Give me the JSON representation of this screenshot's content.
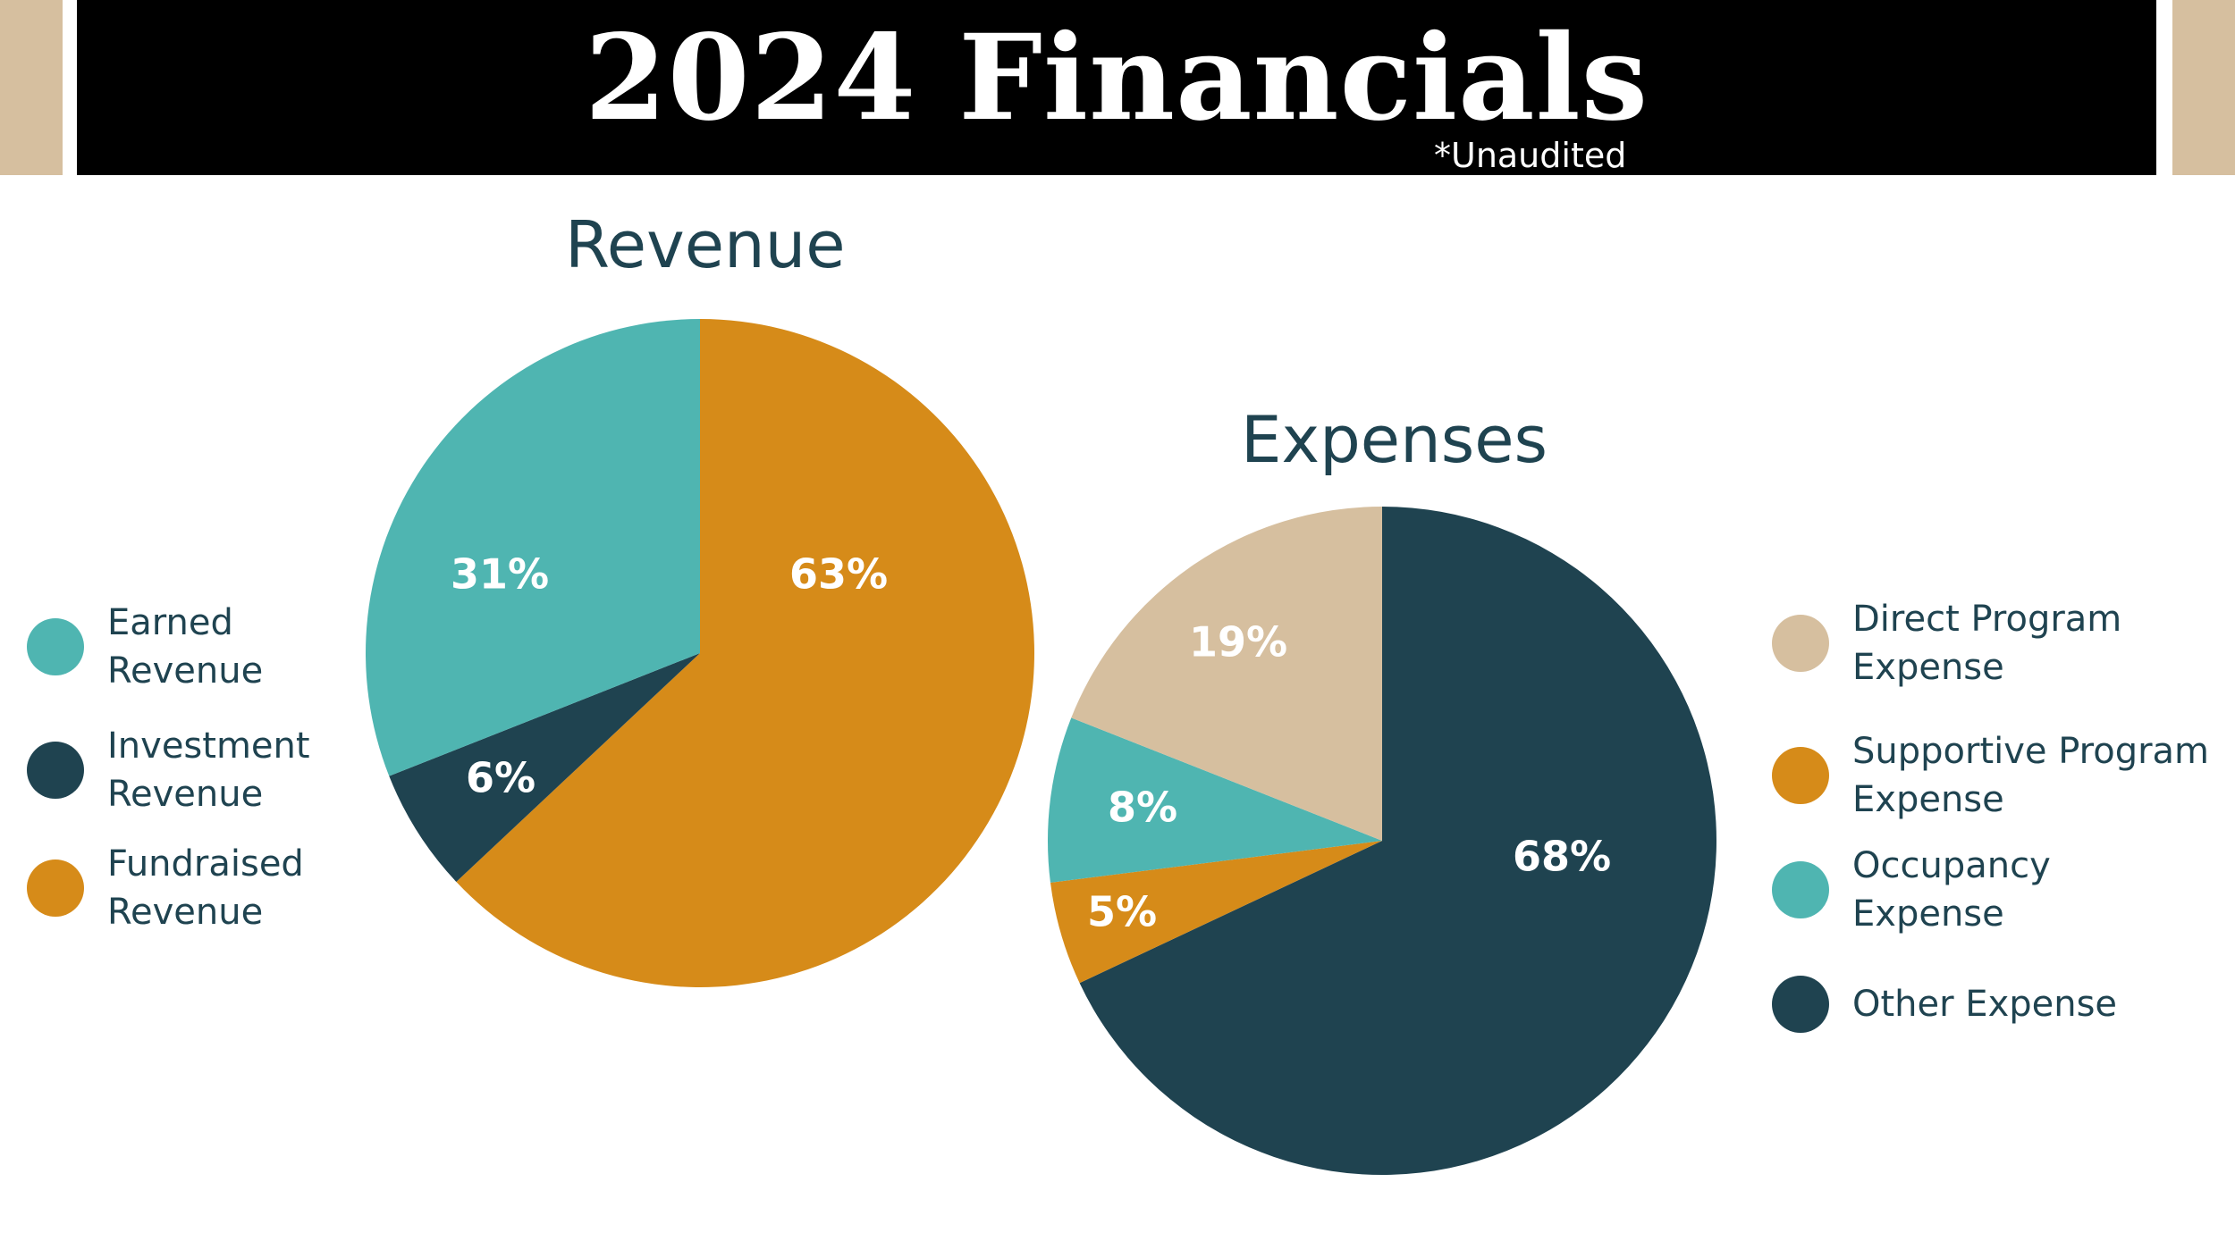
{
  "header": {
    "title": "2024 Financials",
    "note": "*Unaudited"
  },
  "colors": {
    "teal": "#4fb5b1",
    "navy": "#1f4350",
    "orange": "#d68b19",
    "tan": "#d6bf9f",
    "text_dark": "#1f4350",
    "header_bg": "#000000"
  },
  "chart_data": [
    {
      "type": "pie",
      "title": "Revenue",
      "categories": [
        "Earned Revenue",
        "Investment Revenue",
        "Fundraised Revenue"
      ],
      "values": [
        31,
        6,
        63
      ],
      "labels": [
        "31%",
        "6%",
        "63%"
      ],
      "colors": [
        "#4fb5b1",
        "#1f4350",
        "#d68b19"
      ],
      "legend_placement": "left"
    },
    {
      "type": "pie",
      "title": "Expenses",
      "categories": [
        "Direct Program Expense",
        "Supportive Program Expense",
        "Occupancy Expense",
        "Other Expense"
      ],
      "values": [
        19,
        5,
        8,
        68
      ],
      "labels": [
        "19%",
        "5%",
        "8%",
        "68%"
      ],
      "colors": [
        "#d6bf9f",
        "#d68b19",
        "#4fb5b1",
        "#1f4350"
      ],
      "legend_placement": "right"
    }
  ],
  "legends": {
    "revenue": [
      {
        "label": "Earned\nRevenue",
        "color": "#4fb5b1"
      },
      {
        "label": "Investment\nRevenue",
        "color": "#1f4350"
      },
      {
        "label": "Fundraised\nRevenue",
        "color": "#d68b19"
      }
    ],
    "expenses": [
      {
        "label": "Direct Program\nExpense",
        "color": "#d6bf9f"
      },
      {
        "label": "Supportive Program\nExpense",
        "color": "#d68b19"
      },
      {
        "label": "Occupancy\nExpense",
        "color": "#4fb5b1"
      },
      {
        "label": "Other Expense",
        "color": "#1f4350"
      }
    ]
  }
}
